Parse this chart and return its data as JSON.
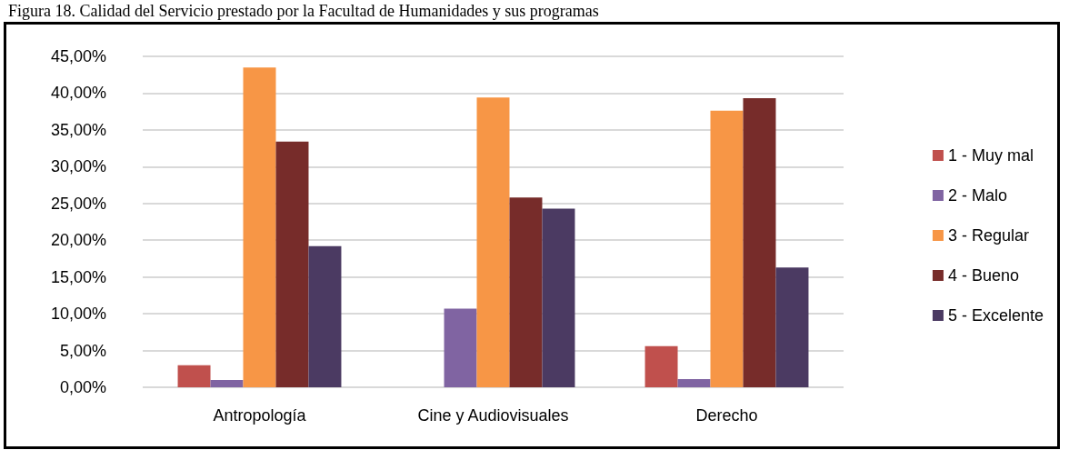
{
  "chart_data": {
    "type": "bar",
    "title": "Figura 18. Calidad del Servicio prestado por la Facultad de Humanidades y sus programas",
    "categories": [
      "Antropología",
      "Cine y Audiovisuales",
      "Derecho"
    ],
    "series": [
      {
        "name": "1 - Muy mal",
        "color": "#c0504d",
        "values": [
          3.0,
          0,
          5.6
        ]
      },
      {
        "name": "2 - Malo",
        "color": "#8064a2",
        "values": [
          1.0,
          10.7,
          1.1
        ]
      },
      {
        "name": "3 - Regular",
        "color": "#f79646",
        "values": [
          43.5,
          39.4,
          37.6
        ]
      },
      {
        "name": "4 - Bueno",
        "color": "#772c2a",
        "values": [
          33.4,
          25.8,
          39.3
        ]
      },
      {
        "name": "5 - Excelente",
        "color": "#4b3a62",
        "values": [
          19.2,
          24.3,
          16.3
        ]
      }
    ],
    "ylim": [
      0,
      45
    ],
    "yticks": [
      {
        "value": 0,
        "label": "0,00%"
      },
      {
        "value": 5,
        "label": "5,00%"
      },
      {
        "value": 10,
        "label": "10,00%"
      },
      {
        "value": 15,
        "label": "15,00%"
      },
      {
        "value": 20,
        "label": "20,00%"
      },
      {
        "value": 25,
        "label": "25,00%"
      },
      {
        "value": 30,
        "label": "30,00%"
      },
      {
        "value": 35,
        "label": "35,00%"
      },
      {
        "value": 40,
        "label": "40,00%"
      },
      {
        "value": 45,
        "label": "45,00%"
      }
    ],
    "grid": "y",
    "legend": "right"
  }
}
